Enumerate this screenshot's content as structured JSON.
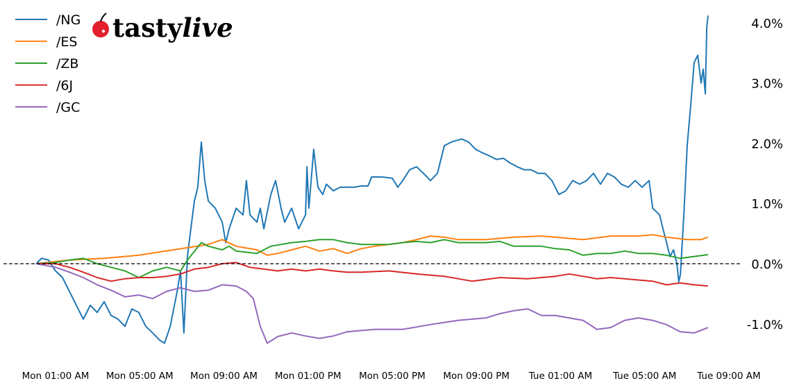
{
  "logo": {
    "text_main": "tasty",
    "text_italic": "live"
  },
  "chart_data": {
    "type": "line",
    "title": "",
    "xlabel": "",
    "ylabel": "",
    "x_unit": "hours since Mon 00:00",
    "xlim": [
      0.08,
      32.06
    ],
    "ylim": [
      -1.5,
      4.25
    ],
    "grid": false,
    "legend_position": "top-left",
    "reference_line": {
      "y": 0,
      "style": "dashed",
      "color": "#000000"
    },
    "x_ticks": [
      {
        "value": 1,
        "label": "Mon 01:00 AM"
      },
      {
        "value": 5,
        "label": "Mon 05:00 AM"
      },
      {
        "value": 9,
        "label": "Mon 09:00 AM"
      },
      {
        "value": 13,
        "label": "Mon 01:00 PM"
      },
      {
        "value": 17,
        "label": "Mon 05:00 PM"
      },
      {
        "value": 21,
        "label": "Mon 09:00 PM"
      },
      {
        "value": 25,
        "label": "Tue 01:00 AM"
      },
      {
        "value": 29,
        "label": "Tue 05:00 AM"
      },
      {
        "value": 33,
        "label": "Tue 09:00 AM"
      }
    ],
    "y_ticks": [
      {
        "value": 4,
        "label": "4.0%"
      },
      {
        "value": 3,
        "label": "3.0%"
      },
      {
        "value": 2,
        "label": "2.0%"
      },
      {
        "value": 1,
        "label": "1.0%"
      },
      {
        "value": 0,
        "label": "0.0%"
      },
      {
        "value": -1,
        "label": "-1.0%"
      }
    ],
    "series": [
      {
        "name": "/NG",
        "color": "#1f77b4",
        "points": [
          [
            0.08,
            0
          ],
          [
            0.34,
            0.09
          ],
          [
            0.67,
            0.06
          ],
          [
            1,
            -0.12
          ],
          [
            1.33,
            -0.23
          ],
          [
            1.66,
            -0.46
          ],
          [
            1.99,
            -0.69
          ],
          [
            2.32,
            -0.92
          ],
          [
            2.65,
            -0.69
          ],
          [
            2.98,
            -0.81
          ],
          [
            3.31,
            -0.63
          ],
          [
            3.64,
            -0.86
          ],
          [
            3.97,
            -0.92
          ],
          [
            4.3,
            -1.04
          ],
          [
            4.63,
            -0.75
          ],
          [
            4.96,
            -0.81
          ],
          [
            5.29,
            -1.04
          ],
          [
            5.62,
            -1.15
          ],
          [
            5.95,
            -1.27
          ],
          [
            6.18,
            -1.32
          ],
          [
            6.45,
            -1.04
          ],
          [
            6.78,
            -0.46
          ],
          [
            6.94,
            -0.12
          ],
          [
            7.1,
            -1.15
          ],
          [
            7.27,
            0.12
          ],
          [
            7.43,
            0.58
          ],
          [
            7.6,
            1.04
          ],
          [
            7.76,
            1.27
          ],
          [
            7.93,
            2.02
          ],
          [
            8.09,
            1.38
          ],
          [
            8.26,
            1.04
          ],
          [
            8.59,
            0.92
          ],
          [
            8.92,
            0.69
          ],
          [
            9.09,
            0.35
          ],
          [
            9.25,
            0.58
          ],
          [
            9.58,
            0.92
          ],
          [
            9.91,
            0.81
          ],
          [
            10.07,
            1.38
          ],
          [
            10.24,
            0.81
          ],
          [
            10.57,
            0.69
          ],
          [
            10.73,
            0.92
          ],
          [
            10.9,
            0.58
          ],
          [
            11.23,
            1.15
          ],
          [
            11.46,
            1.38
          ],
          [
            11.72,
            0.92
          ],
          [
            11.89,
            0.69
          ],
          [
            12.22,
            0.92
          ],
          [
            12.55,
            0.58
          ],
          [
            12.88,
            0.81
          ],
          [
            12.95,
            1.61
          ],
          [
            13.04,
            0.92
          ],
          [
            13.27,
            1.9
          ],
          [
            13.47,
            1.27
          ],
          [
            13.7,
            1.15
          ],
          [
            13.87,
            1.32
          ],
          [
            14.2,
            1.21
          ],
          [
            14.53,
            1.27
          ],
          [
            14.86,
            1.27
          ],
          [
            15.19,
            1.27
          ],
          [
            15.52,
            1.29
          ],
          [
            15.85,
            1.29
          ],
          [
            16.02,
            1.44
          ],
          [
            16.51,
            1.44
          ],
          [
            17.0,
            1.42
          ],
          [
            17.27,
            1.27
          ],
          [
            17.5,
            1.38
          ],
          [
            17.83,
            1.56
          ],
          [
            18.16,
            1.61
          ],
          [
            18.49,
            1.5
          ],
          [
            18.82,
            1.38
          ],
          [
            19.15,
            1.5
          ],
          [
            19.48,
            1.96
          ],
          [
            19.81,
            2.02
          ],
          [
            20.3,
            2.07
          ],
          [
            20.63,
            2.02
          ],
          [
            20.96,
            1.9
          ],
          [
            21.29,
            1.84
          ],
          [
            21.62,
            1.79
          ],
          [
            21.95,
            1.73
          ],
          [
            22.28,
            1.75
          ],
          [
            22.61,
            1.67
          ],
          [
            22.94,
            1.61
          ],
          [
            23.27,
            1.56
          ],
          [
            23.6,
            1.56
          ],
          [
            23.93,
            1.5
          ],
          [
            24.26,
            1.5
          ],
          [
            24.59,
            1.38
          ],
          [
            24.92,
            1.15
          ],
          [
            25.25,
            1.21
          ],
          [
            25.58,
            1.38
          ],
          [
            25.91,
            1.32
          ],
          [
            26.24,
            1.38
          ],
          [
            26.57,
            1.5
          ],
          [
            26.9,
            1.32
          ],
          [
            27.23,
            1.5
          ],
          [
            27.56,
            1.44
          ],
          [
            27.89,
            1.32
          ],
          [
            28.22,
            1.27
          ],
          [
            28.55,
            1.38
          ],
          [
            28.88,
            1.27
          ],
          [
            29.21,
            1.38
          ],
          [
            29.38,
            0.92
          ],
          [
            29.71,
            0.81
          ],
          [
            29.87,
            0.58
          ],
          [
            30.04,
            0.35
          ],
          [
            30.2,
            0.12
          ],
          [
            30.37,
            0.23
          ],
          [
            30.53,
            0
          ],
          [
            30.62,
            -0.3
          ],
          [
            30.7,
            -0.17
          ],
          [
            30.86,
            0.81
          ],
          [
            31.02,
            1.96
          ],
          [
            31.19,
            2.65
          ],
          [
            31.35,
            3.34
          ],
          [
            31.52,
            3.46
          ],
          [
            31.68,
            3.0
          ],
          [
            31.78,
            3.23
          ],
          [
            31.88,
            2.82
          ],
          [
            31.95,
            3.92
          ],
          [
            32.01,
            4.12
          ]
        ]
      },
      {
        "name": "/ES",
        "color": "#ff7f0e",
        "points": [
          [
            0.08,
            0
          ],
          [
            1.66,
            0.06
          ],
          [
            3.31,
            0.09
          ],
          [
            4.96,
            0.14
          ],
          [
            6.61,
            0.23
          ],
          [
            8.26,
            0.32
          ],
          [
            8.92,
            0.4
          ],
          [
            9.58,
            0.29
          ],
          [
            10.57,
            0.23
          ],
          [
            11.06,
            0.14
          ],
          [
            11.56,
            0.17
          ],
          [
            12.22,
            0.23
          ],
          [
            12.88,
            0.29
          ],
          [
            13.54,
            0.21
          ],
          [
            14.2,
            0.25
          ],
          [
            14.86,
            0.17
          ],
          [
            15.52,
            0.25
          ],
          [
            16.18,
            0.29
          ],
          [
            16.84,
            0.32
          ],
          [
            17.5,
            0.35
          ],
          [
            18.16,
            0.4
          ],
          [
            18.82,
            0.46
          ],
          [
            19.48,
            0.44
          ],
          [
            20.14,
            0.4
          ],
          [
            21.46,
            0.4
          ],
          [
            22.78,
            0.44
          ],
          [
            24.09,
            0.46
          ],
          [
            24.75,
            0.44
          ],
          [
            26.07,
            0.4
          ],
          [
            27.39,
            0.46
          ],
          [
            28.71,
            0.46
          ],
          [
            29.38,
            0.48
          ],
          [
            30.04,
            0.44
          ],
          [
            31.02,
            0.4
          ],
          [
            31.68,
            0.4
          ],
          [
            32.01,
            0.44
          ]
        ]
      },
      {
        "name": "/ZB",
        "color": "#2ca02c",
        "points": [
          [
            0.08,
            0
          ],
          [
            1.0,
            0.02
          ],
          [
            1.66,
            0.06
          ],
          [
            2.32,
            0.09
          ],
          [
            2.98,
            0
          ],
          [
            3.64,
            -0.06
          ],
          [
            4.3,
            -0.12
          ],
          [
            4.96,
            -0.23
          ],
          [
            5.62,
            -0.12
          ],
          [
            6.28,
            -0.06
          ],
          [
            6.94,
            -0.12
          ],
          [
            7.27,
            0.06
          ],
          [
            7.93,
            0.35
          ],
          [
            8.26,
            0.29
          ],
          [
            8.92,
            0.23
          ],
          [
            9.25,
            0.29
          ],
          [
            9.58,
            0.21
          ],
          [
            10.57,
            0.17
          ],
          [
            11.23,
            0.29
          ],
          [
            12.22,
            0.35
          ],
          [
            12.88,
            0.37
          ],
          [
            13.54,
            0.4
          ],
          [
            14.2,
            0.4
          ],
          [
            14.86,
            0.35
          ],
          [
            15.52,
            0.32
          ],
          [
            16.18,
            0.32
          ],
          [
            16.84,
            0.32
          ],
          [
            17.5,
            0.35
          ],
          [
            18.16,
            0.37
          ],
          [
            18.82,
            0.35
          ],
          [
            19.48,
            0.4
          ],
          [
            20.14,
            0.35
          ],
          [
            21.46,
            0.35
          ],
          [
            22.12,
            0.37
          ],
          [
            22.78,
            0.29
          ],
          [
            23.44,
            0.29
          ],
          [
            24.09,
            0.29
          ],
          [
            24.75,
            0.25
          ],
          [
            25.41,
            0.23
          ],
          [
            26.07,
            0.14
          ],
          [
            26.73,
            0.17
          ],
          [
            27.39,
            0.17
          ],
          [
            28.05,
            0.21
          ],
          [
            28.71,
            0.17
          ],
          [
            29.37,
            0.17
          ],
          [
            30.03,
            0.14
          ],
          [
            30.69,
            0.09
          ],
          [
            31.35,
            0.12
          ],
          [
            32.01,
            0.15
          ]
        ]
      },
      {
        "name": "/6J",
        "color": "#d62728",
        "points": [
          [
            0.08,
            0
          ],
          [
            1.0,
            0
          ],
          [
            1.66,
            -0.06
          ],
          [
            2.32,
            -0.14
          ],
          [
            2.98,
            -0.23
          ],
          [
            3.64,
            -0.29
          ],
          [
            4.3,
            -0.25
          ],
          [
            4.96,
            -0.23
          ],
          [
            5.62,
            -0.23
          ],
          [
            6.28,
            -0.21
          ],
          [
            6.94,
            -0.17
          ],
          [
            7.6,
            -0.09
          ],
          [
            8.26,
            -0.06
          ],
          [
            8.92,
            0
          ],
          [
            9.58,
            0.02
          ],
          [
            10.24,
            -0.06
          ],
          [
            10.9,
            -0.09
          ],
          [
            11.56,
            -0.12
          ],
          [
            12.22,
            -0.09
          ],
          [
            12.88,
            -0.12
          ],
          [
            13.54,
            -0.09
          ],
          [
            14.2,
            -0.12
          ],
          [
            14.86,
            -0.14
          ],
          [
            15.52,
            -0.14
          ],
          [
            16.84,
            -0.12
          ],
          [
            18.16,
            -0.17
          ],
          [
            19.48,
            -0.21
          ],
          [
            20.8,
            -0.29
          ],
          [
            22.12,
            -0.23
          ],
          [
            23.44,
            -0.25
          ],
          [
            24.75,
            -0.21
          ],
          [
            25.41,
            -0.17
          ],
          [
            26.07,
            -0.21
          ],
          [
            26.73,
            -0.25
          ],
          [
            27.39,
            -0.23
          ],
          [
            28.05,
            -0.25
          ],
          [
            29.37,
            -0.29
          ],
          [
            30.03,
            -0.35
          ],
          [
            30.69,
            -0.32
          ],
          [
            31.35,
            -0.35
          ],
          [
            32.01,
            -0.37
          ]
        ]
      },
      {
        "name": "/GC",
        "color": "#9467bd",
        "points": [
          [
            0.08,
            0
          ],
          [
            1.0,
            -0.06
          ],
          [
            1.66,
            -0.14
          ],
          [
            2.32,
            -0.23
          ],
          [
            2.98,
            -0.35
          ],
          [
            3.64,
            -0.44
          ],
          [
            4.3,
            -0.55
          ],
          [
            4.96,
            -0.52
          ],
          [
            5.62,
            -0.58
          ],
          [
            6.28,
            -0.46
          ],
          [
            6.94,
            -0.4
          ],
          [
            7.6,
            -0.46
          ],
          [
            8.26,
            -0.44
          ],
          [
            8.92,
            -0.35
          ],
          [
            9.58,
            -0.37
          ],
          [
            10.07,
            -0.46
          ],
          [
            10.4,
            -0.58
          ],
          [
            10.73,
            -1.04
          ],
          [
            11.06,
            -1.32
          ],
          [
            11.56,
            -1.21
          ],
          [
            12.22,
            -1.15
          ],
          [
            12.88,
            -1.2
          ],
          [
            13.54,
            -1.24
          ],
          [
            14.2,
            -1.2
          ],
          [
            14.86,
            -1.13
          ],
          [
            16.18,
            -1.09
          ],
          [
            17.5,
            -1.09
          ],
          [
            18.82,
            -1.01
          ],
          [
            20.14,
            -0.94
          ],
          [
            21.46,
            -0.9
          ],
          [
            22.12,
            -0.83
          ],
          [
            22.78,
            -0.78
          ],
          [
            23.44,
            -0.75
          ],
          [
            24.09,
            -0.86
          ],
          [
            24.75,
            -0.86
          ],
          [
            25.41,
            -0.9
          ],
          [
            26.07,
            -0.94
          ],
          [
            26.73,
            -1.09
          ],
          [
            27.39,
            -1.06
          ],
          [
            28.05,
            -0.94
          ],
          [
            28.71,
            -0.9
          ],
          [
            29.37,
            -0.94
          ],
          [
            30.03,
            -1.01
          ],
          [
            30.69,
            -1.13
          ],
          [
            31.35,
            -1.15
          ],
          [
            32.01,
            -1.06
          ]
        ]
      }
    ]
  }
}
